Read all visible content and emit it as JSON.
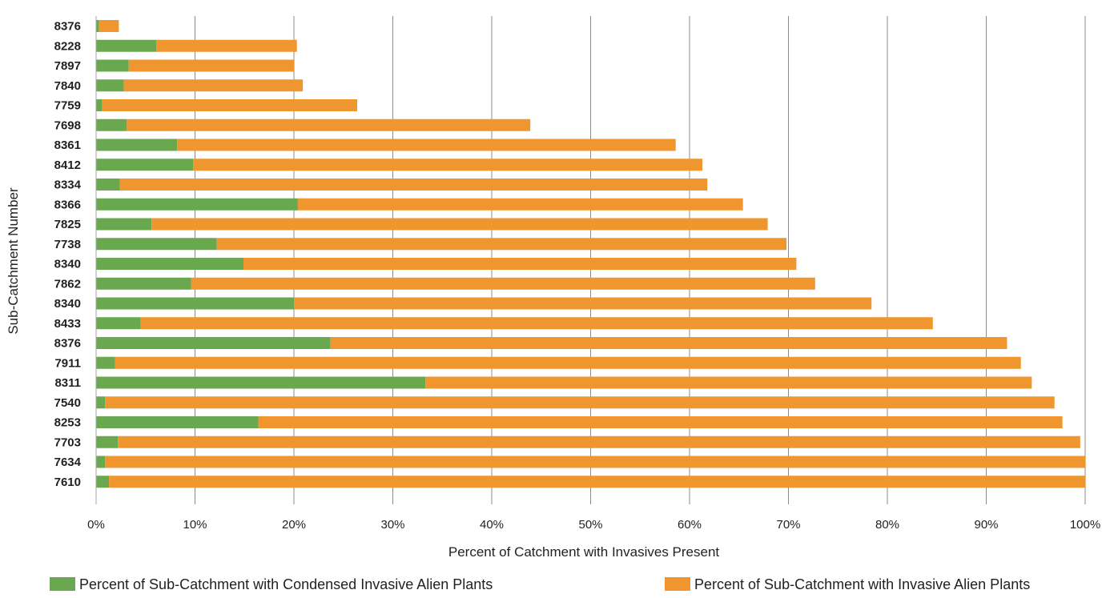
{
  "chart_data": {
    "type": "bar",
    "orientation": "horizontal",
    "stacked": true,
    "xlabel": "Percent of Catchment with Invasives Present",
    "ylabel": "Sub-Catchment  Number",
    "xlim": [
      0,
      100
    ],
    "x_ticks": [
      "0%",
      "10%",
      "20%",
      "30%",
      "40%",
      "50%",
      "60%",
      "70%",
      "80%",
      "90%",
      "100%"
    ],
    "grid": "vertical",
    "legend_position": "bottom",
    "categories": [
      "8376",
      "8228",
      "7897",
      "7840",
      "7759",
      "7698",
      "8361",
      "8412",
      "8334",
      "8366",
      "7825",
      "7738",
      "8340",
      "7862",
      "8340",
      "8433",
      "8376",
      "7911",
      "8311",
      "7540",
      "8253",
      "7703",
      "7634",
      "7610"
    ],
    "series": [
      {
        "name": "Percent of Sub-Catchment with Condensed Invasive Alien Plants",
        "color": "#6aa84f",
        "values": [
          0.3,
          6.1,
          3.3,
          2.8,
          0.6,
          3.1,
          8.2,
          9.8,
          2.4,
          20.4,
          5.6,
          12.2,
          14.9,
          9.6,
          20.0,
          4.5,
          23.7,
          1.9,
          33.3,
          0.9,
          16.4,
          2.2,
          0.9,
          1.3
        ]
      },
      {
        "name": "Percent of Sub-Catchment with Invasive Alien Plants",
        "color": "#f0962e",
        "values": [
          2.0,
          14.2,
          16.7,
          18.1,
          25.8,
          40.8,
          50.4,
          51.5,
          59.4,
          45.0,
          62.3,
          57.6,
          55.9,
          63.1,
          58.4,
          80.1,
          68.4,
          91.6,
          61.3,
          96.0,
          81.3,
          97.3,
          99.1,
          98.7
        ]
      }
    ]
  }
}
